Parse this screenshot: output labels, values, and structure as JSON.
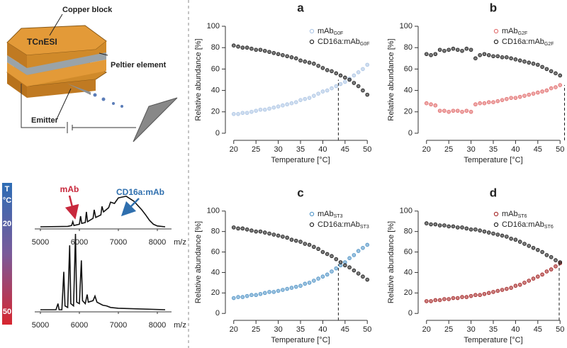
{
  "diagram": {
    "copper_block": "Copper block",
    "source": "TCnESI",
    "peltier": "Peltier element",
    "emitter": "Emitter"
  },
  "colorbar": {
    "title": "T",
    "unit": "°C",
    "top": "20",
    "bottom": "50"
  },
  "chart_data": [
    {
      "type": "scatter",
      "title": "a",
      "xlabel": "Temperature [°C]",
      "ylabel": "Relative abundance [%]",
      "xlim": [
        19.4,
        50.6
      ],
      "ylim": [
        -4,
        104
      ],
      "xticks": [
        20,
        25,
        30,
        35,
        40,
        45,
        50
      ],
      "yticks": [
        0,
        20,
        40,
        60,
        80,
        100
      ],
      "x": [
        20,
        21,
        22,
        23,
        24,
        25,
        26,
        27,
        28,
        29,
        30,
        31,
        32,
        33,
        34,
        35,
        36,
        37,
        38,
        39,
        40,
        41,
        42,
        43,
        44,
        45,
        46,
        47,
        48,
        49,
        50
      ],
      "series": [
        {
          "name": "mAb",
          "subscript": "G0F",
          "color": "#a9c3e3",
          "values": [
            18,
            18,
            19,
            19,
            20,
            21,
            22,
            22,
            23,
            24,
            25,
            26,
            27,
            28,
            29,
            31,
            32,
            33,
            35,
            37,
            39,
            40,
            42,
            44,
            46,
            48,
            51,
            54,
            57,
            60,
            64
          ]
        },
        {
          "name": "CD16a:mAb",
          "subscript": "G0F",
          "color": "#111111",
          "values": [
            82,
            81,
            80,
            80,
            79,
            78,
            78,
            77,
            76,
            75,
            74,
            73,
            72,
            71,
            70,
            68,
            67,
            66,
            65,
            63,
            61,
            59,
            58,
            56,
            54,
            52,
            50,
            47,
            44,
            40,
            36
          ]
        }
      ],
      "marker": {
        "x": 43.5,
        "y": 50
      }
    },
    {
      "type": "scatter",
      "title": "b",
      "xlabel": "Temperature [°C]",
      "ylabel": "Relative abundance [%]",
      "xlim": [
        19.4,
        50.6
      ],
      "ylim": [
        -4,
        104
      ],
      "xticks": [
        20,
        25,
        30,
        35,
        40,
        45,
        50
      ],
      "yticks": [
        0,
        20,
        40,
        60,
        80,
        100
      ],
      "x": [
        20,
        21,
        22,
        23,
        24,
        25,
        26,
        27,
        28,
        29,
        30,
        31,
        32,
        33,
        34,
        35,
        36,
        37,
        38,
        39,
        40,
        41,
        42,
        43,
        44,
        45,
        46,
        47,
        48,
        49,
        50
      ],
      "series": [
        {
          "name": "mAb",
          "subscript": "G2F",
          "color": "#e06666",
          "values": [
            28,
            27,
            26,
            21,
            21,
            20,
            21,
            21,
            20,
            21,
            20,
            27,
            28,
            28,
            29,
            29,
            30,
            31,
            32,
            33,
            33,
            34,
            35,
            36,
            37,
            38,
            39,
            40,
            42,
            43,
            45
          ]
        },
        {
          "name": "CD16a:mAb",
          "subscript": "G2F",
          "color": "#111111",
          "values": [
            74,
            73,
            74,
            78,
            77,
            78,
            79,
            78,
            77,
            79,
            78,
            70,
            73,
            74,
            73,
            72,
            72,
            71,
            71,
            70,
            69,
            68,
            67,
            66,
            65,
            64,
            62,
            60,
            58,
            56,
            54
          ]
        }
      ],
      "marker": {
        "x": 51,
        "y": 45
      }
    },
    {
      "type": "scatter",
      "title": "c",
      "xlabel": "Temperature [°C]",
      "ylabel": "Relative abundance [%]",
      "xlim": [
        19.4,
        50.6
      ],
      "ylim": [
        -4,
        104
      ],
      "xticks": [
        20,
        25,
        30,
        35,
        40,
        45,
        50
      ],
      "yticks": [
        0,
        20,
        40,
        60,
        80,
        100
      ],
      "x": [
        20,
        21,
        22,
        23,
        24,
        25,
        26,
        27,
        28,
        29,
        30,
        31,
        32,
        33,
        34,
        35,
        36,
        37,
        38,
        39,
        40,
        41,
        42,
        43,
        44,
        45,
        46,
        47,
        48,
        49,
        50
      ],
      "series": [
        {
          "name": "mAb",
          "subscript": "ST3",
          "color": "#4a90c4",
          "values": [
            15,
            16,
            16,
            17,
            18,
            18,
            19,
            20,
            21,
            21,
            22,
            23,
            24,
            25,
            26,
            27,
            29,
            30,
            32,
            34,
            36,
            38,
            41,
            44,
            47,
            50,
            54,
            57,
            61,
            64,
            67
          ]
        },
        {
          "name": "CD16a:mAb",
          "subscript": "ST3",
          "color": "#111111",
          "values": [
            84,
            83,
            83,
            82,
            81,
            80,
            80,
            79,
            78,
            77,
            76,
            75,
            74,
            72,
            71,
            70,
            68,
            67,
            65,
            63,
            60,
            58,
            56,
            53,
            50,
            47,
            45,
            42,
            39,
            36,
            33
          ]
        }
      ],
      "marker": {
        "x": 43.5,
        "y": 48
      }
    },
    {
      "type": "scatter",
      "title": "d",
      "xlabel": "Temperature [°C]",
      "ylabel": "Relative abundance [%]",
      "xlim": [
        19.4,
        50.6
      ],
      "ylim": [
        -4,
        104
      ],
      "xticks": [
        20,
        25,
        30,
        35,
        40,
        45,
        50
      ],
      "yticks": [
        0,
        20,
        40,
        60,
        80,
        100
      ],
      "x": [
        20,
        21,
        22,
        23,
        24,
        25,
        26,
        27,
        28,
        29,
        30,
        31,
        32,
        33,
        34,
        35,
        36,
        37,
        38,
        39,
        40,
        41,
        42,
        43,
        44,
        45,
        46,
        47,
        48,
        49,
        50
      ],
      "series": [
        {
          "name": "mAb",
          "subscript": "ST6",
          "color": "#a01c1c",
          "values": [
            12,
            12,
            13,
            13,
            14,
            14,
            15,
            15,
            16,
            16,
            17,
            18,
            18,
            19,
            20,
            21,
            22,
            23,
            24,
            25,
            27,
            28,
            30,
            32,
            34,
            36,
            38,
            41,
            43,
            46,
            49
          ]
        },
        {
          "name": "CD16a:mAb",
          "subscript": "ST6",
          "color": "#111111",
          "values": [
            88,
            87,
            87,
            86,
            86,
            85,
            85,
            84,
            84,
            83,
            82,
            82,
            81,
            80,
            79,
            78,
            77,
            76,
            75,
            73,
            72,
            70,
            68,
            66,
            64,
            62,
            60,
            57,
            55,
            52,
            50
          ]
        }
      ],
      "marker": {
        "x": 49.8,
        "y": 50
      }
    },
    {
      "type": "line",
      "xlabel": "m/z",
      "xlim": [
        5000,
        8000
      ],
      "ylim": [
        0,
        100
      ],
      "xticks": [
        5000,
        6000,
        7000,
        8000
      ],
      "x": [
        5000,
        5700,
        5800,
        5830,
        5860,
        6000,
        6030,
        6060,
        6150,
        6180,
        6210,
        6350,
        6380,
        6420,
        6550,
        6580,
        6620,
        6750,
        6800,
        6900,
        7000,
        7100,
        7200,
        7300,
        7400,
        7500,
        7600,
        7700,
        7800,
        7900,
        8000,
        8200
      ],
      "series": [
        {
          "color": "#111111",
          "values": [
            0,
            1,
            3,
            12,
            3,
            6,
            25,
            8,
            10,
            35,
            12,
            20,
            40,
            22,
            28,
            48,
            35,
            45,
            58,
            55,
            68,
            70,
            72,
            66,
            60,
            50,
            40,
            28,
            15,
            6,
            2,
            0
          ]
        }
      ],
      "annotations": [
        {
          "text": "mAb",
          "color": "#c8283c"
        },
        {
          "text": "CD16a:mAb",
          "color": "#2f6fae"
        }
      ]
    },
    {
      "type": "line",
      "xlabel": "m/z",
      "xlim": [
        5000,
        8000
      ],
      "ylim": [
        0,
        100
      ],
      "xticks": [
        5000,
        6000,
        7000,
        8000
      ],
      "x": [
        5000,
        5400,
        5450,
        5480,
        5550,
        5600,
        5630,
        5700,
        5750,
        5780,
        5850,
        5900,
        5930,
        6000,
        6050,
        6080,
        6150,
        6200,
        6230,
        6350,
        6400,
        6450,
        6600,
        6700,
        6800,
        7000,
        8200
      ],
      "series": [
        {
          "color": "#111111",
          "values": [
            0,
            0,
            8,
            0,
            0,
            50,
            5,
            3,
            85,
            8,
            5,
            100,
            10,
            8,
            65,
            12,
            8,
            20,
            10,
            12,
            18,
            10,
            6,
            5,
            3,
            2,
            0
          ]
        }
      ]
    }
  ]
}
